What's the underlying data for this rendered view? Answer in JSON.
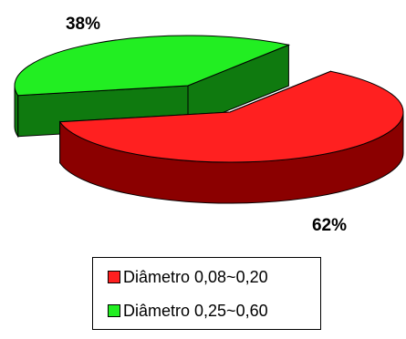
{
  "chart_data": {
    "type": "pie",
    "style": "3d-exploded",
    "slices": [
      {
        "name": "Diâmetro 0,08~0,20",
        "value": 62,
        "label": "62%",
        "color": "#ff2020",
        "side_color": "#8b0000"
      },
      {
        "name": "Diâmetro 0,25~0,60",
        "value": 38,
        "label": "38%",
        "color": "#22ee22",
        "side_color": "#0f7a0f"
      }
    ],
    "legend_position": "bottom"
  }
}
